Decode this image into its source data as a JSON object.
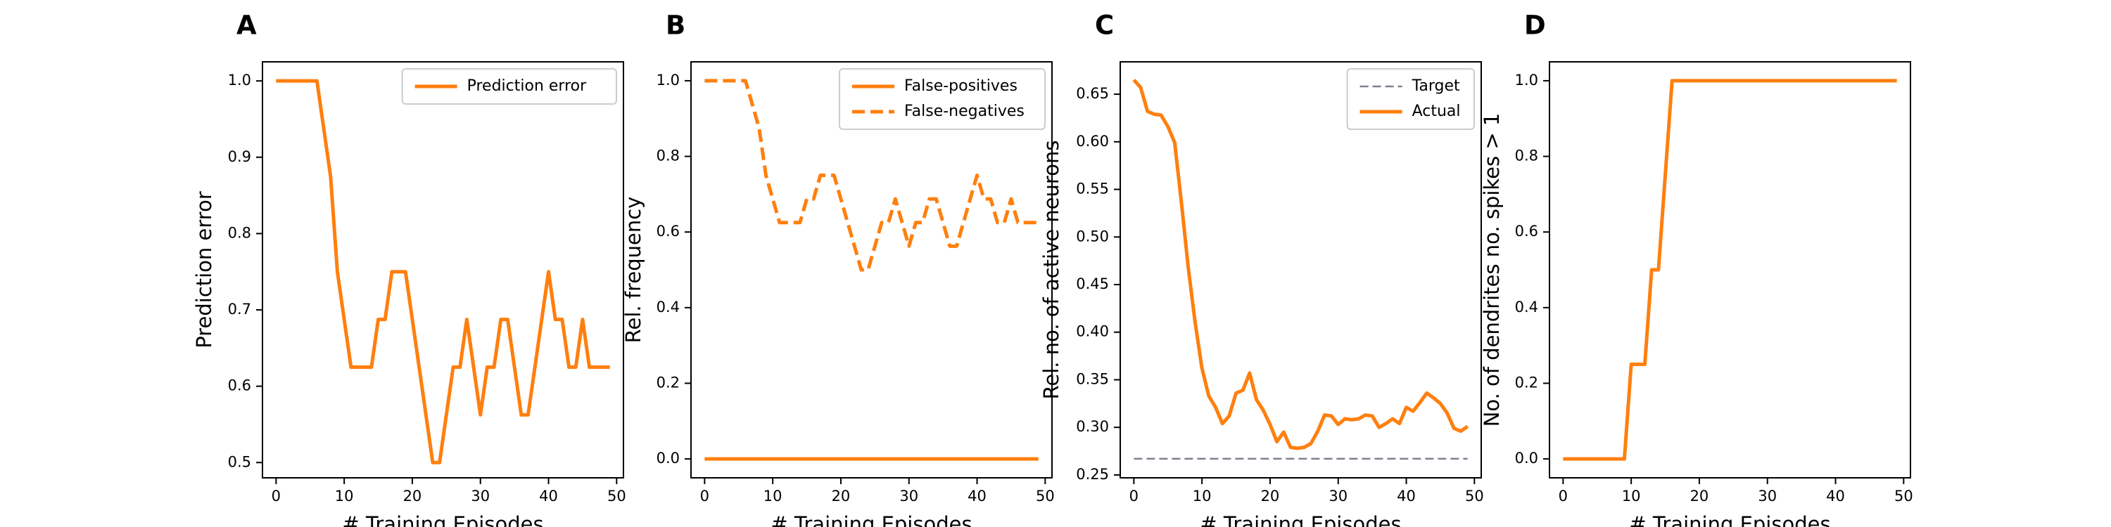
{
  "chart_data": [
    {
      "panel": "A",
      "type": "line",
      "xlabel": "# Training Episodes",
      "ylabel": "Prediction error",
      "xlim": [
        -2,
        51
      ],
      "ylim": [
        0.48,
        1.025
      ],
      "xticks": [
        0,
        10,
        20,
        30,
        40,
        50
      ],
      "yticks": [
        0.5,
        0.6,
        0.7,
        0.8,
        0.9,
        1.0
      ],
      "ytick_labels": [
        "0.5",
        "0.6",
        "0.7",
        "0.8",
        "0.9",
        "1.0"
      ],
      "grid": false,
      "legend": "top-right",
      "series": [
        {
          "name": "Prediction error",
          "color": "#ff7f0e",
          "style": "solid",
          "x": [
            0,
            1,
            2,
            3,
            4,
            5,
            6,
            7,
            8,
            9,
            10,
            11,
            12,
            13,
            14,
            15,
            16,
            17,
            18,
            19,
            20,
            21,
            22,
            23,
            24,
            25,
            26,
            27,
            28,
            29,
            30,
            31,
            32,
            33,
            34,
            35,
            36,
            37,
            38,
            39,
            40,
            41,
            42,
            43,
            44,
            45,
            46,
            47,
            48,
            49
          ],
          "y": [
            1.0,
            1.0,
            1.0,
            1.0,
            1.0,
            1.0,
            1.0,
            0.9375,
            0.875,
            0.75,
            0.6875,
            0.625,
            0.625,
            0.625,
            0.625,
            0.6875,
            0.6875,
            0.75,
            0.75,
            0.75,
            0.6875,
            0.625,
            0.5625,
            0.5,
            0.5,
            0.5625,
            0.625,
            0.625,
            0.6875,
            0.625,
            0.5625,
            0.625,
            0.625,
            0.6875,
            0.6875,
            0.625,
            0.5625,
            0.5625,
            0.625,
            0.6875,
            0.75,
            0.6875,
            0.6875,
            0.625,
            0.625,
            0.6875,
            0.625,
            0.625,
            0.625,
            0.625
          ]
        }
      ]
    },
    {
      "panel": "B",
      "type": "line",
      "xlabel": "# Training Episodes",
      "ylabel": "Rel. frequency",
      "xlim": [
        -2,
        51
      ],
      "ylim": [
        -0.05,
        1.05
      ],
      "xticks": [
        0,
        10,
        20,
        30,
        40,
        50
      ],
      "yticks": [
        0.0,
        0.2,
        0.4,
        0.6,
        0.8,
        1.0
      ],
      "ytick_labels": [
        "0.0",
        "0.2",
        "0.4",
        "0.6",
        "0.8",
        "1.0"
      ],
      "grid": false,
      "legend": "top-right",
      "series": [
        {
          "name": "False-positives",
          "color": "#ff7f0e",
          "style": "solid",
          "x": [
            0,
            49
          ],
          "y": [
            0.0,
            0.0
          ]
        },
        {
          "name": "False-negatives",
          "color": "#ff7f0e",
          "style": "dashed",
          "x": [
            0,
            1,
            2,
            3,
            4,
            5,
            6,
            7,
            8,
            9,
            10,
            11,
            12,
            13,
            14,
            15,
            16,
            17,
            18,
            19,
            20,
            21,
            22,
            23,
            24,
            25,
            26,
            27,
            28,
            29,
            30,
            31,
            32,
            33,
            34,
            35,
            36,
            37,
            38,
            39,
            40,
            41,
            42,
            43,
            44,
            45,
            46,
            47,
            48,
            49
          ],
          "y": [
            1.0,
            1.0,
            1.0,
            1.0,
            1.0,
            1.0,
            1.0,
            0.9375,
            0.875,
            0.75,
            0.6875,
            0.625,
            0.625,
            0.625,
            0.625,
            0.6875,
            0.6875,
            0.75,
            0.75,
            0.75,
            0.6875,
            0.625,
            0.5625,
            0.5,
            0.5,
            0.5625,
            0.625,
            0.625,
            0.6875,
            0.625,
            0.5625,
            0.625,
            0.625,
            0.6875,
            0.6875,
            0.625,
            0.5625,
            0.5625,
            0.625,
            0.6875,
            0.75,
            0.6875,
            0.6875,
            0.625,
            0.625,
            0.6875,
            0.625,
            0.625,
            0.625,
            0.625
          ]
        }
      ]
    },
    {
      "panel": "C",
      "type": "line",
      "xlabel": "# Training Episodes",
      "ylabel": "Rel. no. of active neurons",
      "xlim": [
        -2,
        51
      ],
      "ylim": [
        0.247,
        0.684
      ],
      "xticks": [
        0,
        10,
        20,
        30,
        40,
        50
      ],
      "yticks": [
        0.25,
        0.3,
        0.35,
        0.4,
        0.45,
        0.5,
        0.55,
        0.6,
        0.65
      ],
      "ytick_labels": [
        "0.25",
        "0.30",
        "0.35",
        "0.40",
        "0.45",
        "0.50",
        "0.55",
        "0.60",
        "0.65"
      ],
      "grid": false,
      "legend": "top-right",
      "series": [
        {
          "name": "Target",
          "color": "#7f7f8f",
          "style": "dashed",
          "x": [
            0,
            49
          ],
          "y": [
            0.267,
            0.267
          ]
        },
        {
          "name": "Actual",
          "color": "#ff7f0e",
          "style": "solid",
          "x": [
            0,
            1,
            2,
            3,
            4,
            5,
            6,
            7,
            8,
            9,
            10,
            11,
            12,
            13,
            14,
            15,
            16,
            17,
            18,
            19,
            20,
            21,
            22,
            23,
            24,
            25,
            26,
            27,
            28,
            29,
            30,
            31,
            32,
            33,
            34,
            35,
            36,
            37,
            38,
            39,
            40,
            41,
            42,
            43,
            44,
            45,
            46,
            47,
            48,
            49
          ],
          "y": [
            0.665,
            0.657,
            0.632,
            0.629,
            0.628,
            0.616,
            0.599,
            0.535,
            0.467,
            0.41,
            0.362,
            0.333,
            0.321,
            0.304,
            0.312,
            0.336,
            0.339,
            0.357,
            0.329,
            0.318,
            0.303,
            0.285,
            0.295,
            0.279,
            0.278,
            0.279,
            0.283,
            0.296,
            0.313,
            0.312,
            0.303,
            0.309,
            0.308,
            0.309,
            0.313,
            0.312,
            0.3,
            0.304,
            0.309,
            0.304,
            0.321,
            0.317,
            0.326,
            0.336,
            0.331,
            0.325,
            0.315,
            0.299,
            0.296,
            0.301
          ]
        }
      ]
    },
    {
      "panel": "D",
      "type": "line",
      "xlabel": "# Training Episodes",
      "ylabel": "No. of dendrites no. spikes > 1",
      "xlim": [
        -2,
        51
      ],
      "ylim": [
        -0.05,
        1.05
      ],
      "xticks": [
        0,
        10,
        20,
        30,
        40,
        50
      ],
      "yticks": [
        0.0,
        0.2,
        0.4,
        0.6,
        0.8,
        1.0
      ],
      "ytick_labels": [
        "0.0",
        "0.2",
        "0.4",
        "0.6",
        "0.8",
        "1.0"
      ],
      "grid": false,
      "series": [
        {
          "color": "#ff7f0e",
          "style": "solid",
          "x": [
            0,
            1,
            2,
            3,
            4,
            5,
            6,
            7,
            8,
            9,
            10,
            11,
            12,
            13,
            14,
            15,
            16,
            17,
            18,
            19,
            20,
            21,
            22,
            23,
            24,
            25,
            26,
            27,
            28,
            29,
            30,
            31,
            32,
            33,
            34,
            35,
            36,
            37,
            38,
            39,
            40,
            41,
            42,
            43,
            44,
            45,
            46,
            47,
            48,
            49
          ],
          "y": [
            0,
            0,
            0,
            0,
            0,
            0,
            0,
            0,
            0,
            0,
            0.25,
            0.25,
            0.25,
            0.5,
            0.5,
            0.75,
            1,
            1,
            1,
            1,
            1,
            1,
            1,
            1,
            1,
            1,
            1,
            1,
            1,
            1,
            1,
            1,
            1,
            1,
            1,
            1,
            1,
            1,
            1,
            1,
            1,
            1,
            1,
            1,
            1,
            1,
            1,
            1,
            1,
            1
          ]
        }
      ]
    }
  ]
}
